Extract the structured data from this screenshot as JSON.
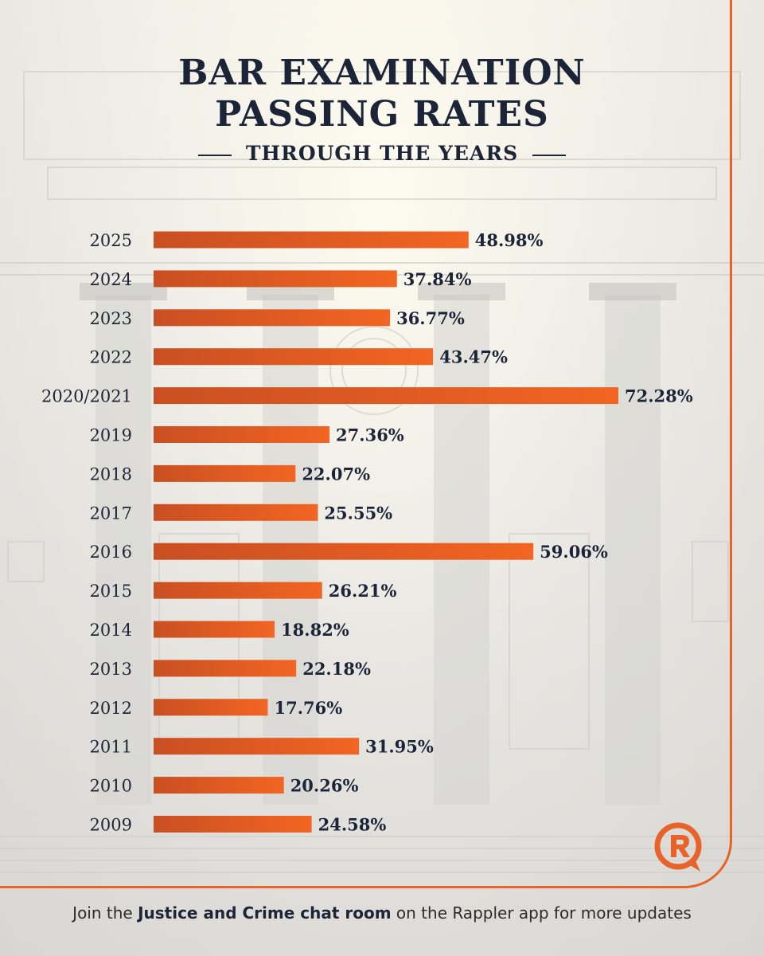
{
  "chart_data": {
    "type": "bar",
    "orientation": "horizontal",
    "title": "BAR EXAMINATION PASSING RATES",
    "subtitle": "THROUGH THE YEARS",
    "categories": [
      "2025",
      "2024",
      "2023",
      "2022",
      "2020/2021",
      "2019",
      "2018",
      "2017",
      "2016",
      "2015",
      "2014",
      "2013",
      "2012",
      "2011",
      "2010",
      "2009"
    ],
    "values": [
      48.98,
      37.84,
      36.77,
      43.47,
      72.28,
      27.36,
      22.07,
      25.55,
      59.06,
      26.21,
      18.82,
      22.18,
      17.76,
      31.95,
      20.26,
      24.58
    ],
    "value_labels": [
      "48.98%",
      "37.84%",
      "36.77%",
      "43.47%",
      "72.28%",
      "27.36%",
      "22.07%",
      "25.55%",
      "59.06%",
      "26.21%",
      "18.82%",
      "22.18%",
      "17.76%",
      "31.95%",
      "20.26%",
      "24.58%"
    ],
    "unit": "%",
    "xlim": [
      0,
      72.28
    ],
    "grid": false,
    "legend": "none",
    "bar_color_start": "#c94f22",
    "bar_color_end": "#f26522"
  },
  "header": {
    "title_line1": "BAR EXAMINATION",
    "title_line2": "PASSING RATES",
    "subtitle": "THROUGH THE YEARS"
  },
  "footer": {
    "prefix": "Join the ",
    "bold": "Justice and Crime chat room",
    "suffix": " on the Rappler app for more updates"
  },
  "brand": {
    "logo_icon": "rappler-icon",
    "accent_color": "#e8632a",
    "title_color": "#1c2438"
  }
}
